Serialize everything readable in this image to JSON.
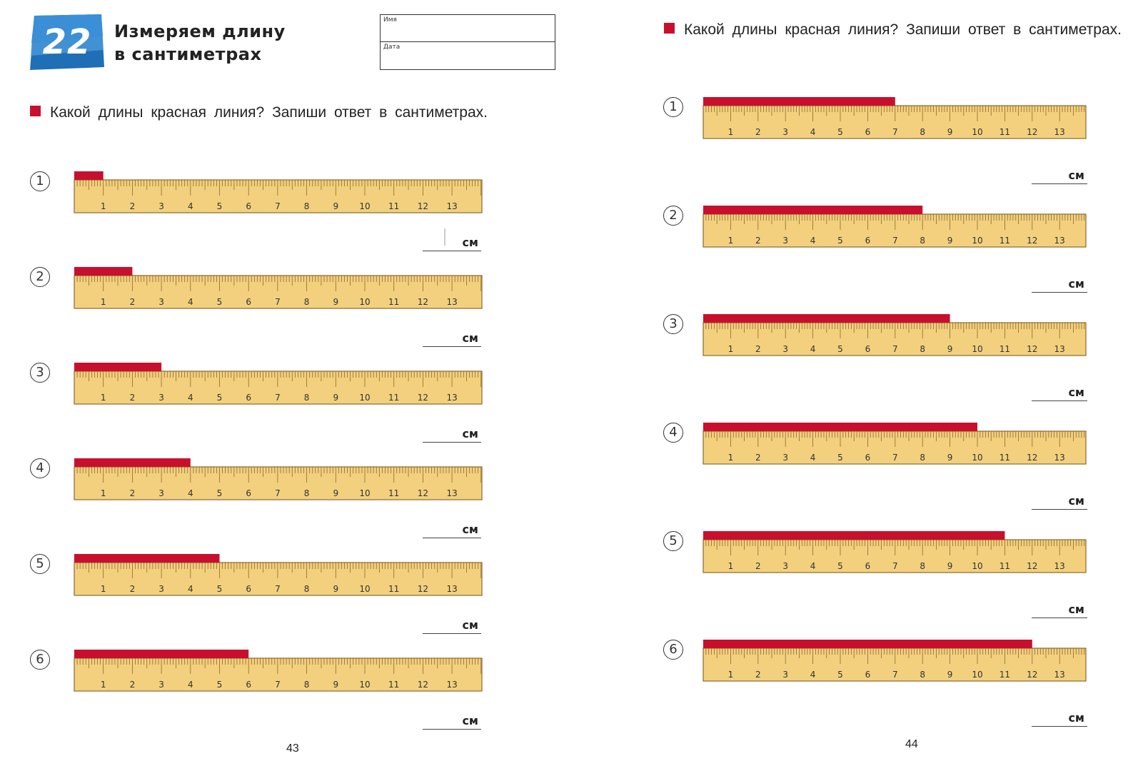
{
  "colors": {
    "ruler_fill": "#f2d07e",
    "ruler_edge": "#8a6a30",
    "tick": "#8c6a2c",
    "red_line": "#c8102e",
    "badge_blue": "#1e6fb6",
    "badge_light": "#4da3e0"
  },
  "header": {
    "lesson_number": "22",
    "title_line1": "Измеряем длину",
    "title_line2": "в сантиметрах",
    "name_label": "Имя",
    "date_label": "Дата"
  },
  "ruler_labels": [
    "1",
    "2",
    "3",
    "4",
    "5",
    "6",
    "7",
    "8",
    "9",
    "10",
    "11",
    "12",
    "13"
  ],
  "unit": "см",
  "left_page": {
    "instruction": "Какой длины красная линия? Запиши ответ в сантиметрах.",
    "page_number": "43",
    "exercises": [
      {
        "label": "1",
        "length_cm": 1
      },
      {
        "label": "2",
        "length_cm": 2
      },
      {
        "label": "3",
        "length_cm": 3
      },
      {
        "label": "4",
        "length_cm": 4
      },
      {
        "label": "5",
        "length_cm": 5
      },
      {
        "label": "6",
        "length_cm": 6
      }
    ]
  },
  "right_page": {
    "instruction": "Какой длины красная линия? Запиши ответ в сантиметрах.",
    "page_number": "44",
    "exercises": [
      {
        "label": "1",
        "length_cm": 7
      },
      {
        "label": "2",
        "length_cm": 8
      },
      {
        "label": "3",
        "length_cm": 9
      },
      {
        "label": "4",
        "length_cm": 10
      },
      {
        "label": "5",
        "length_cm": 11
      },
      {
        "label": "6",
        "length_cm": 12
      }
    ]
  }
}
